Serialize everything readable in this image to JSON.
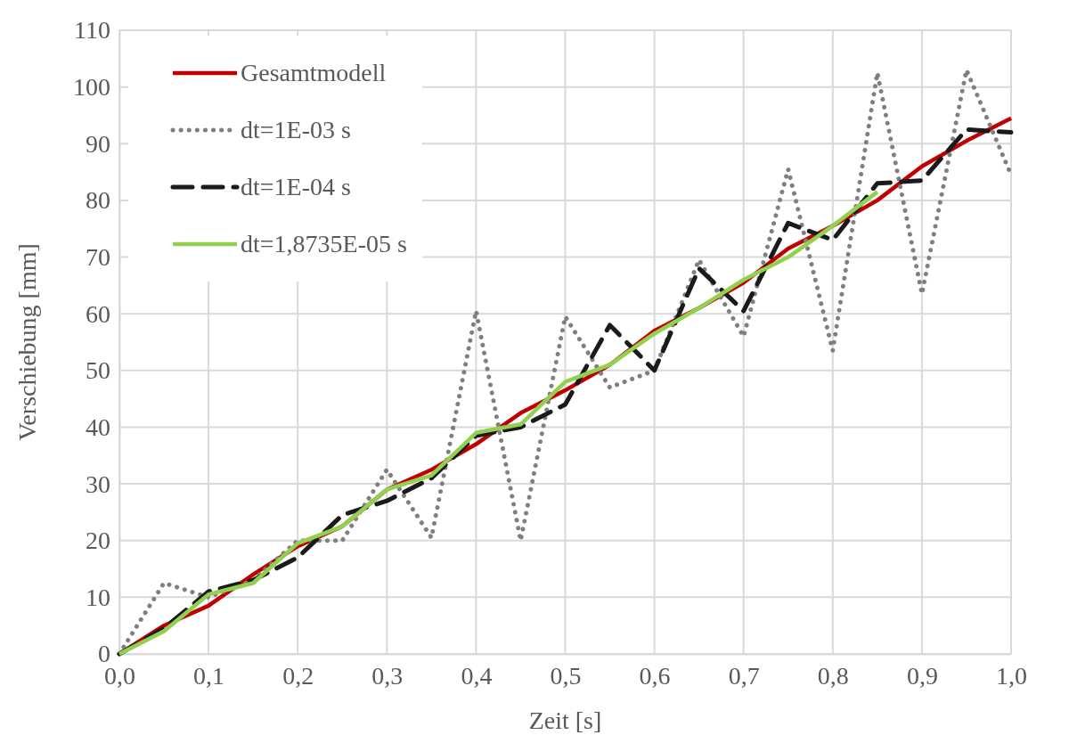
{
  "chart_data": {
    "type": "line",
    "xlabel": "Zeit [s]",
    "ylabel": "Verschiebung [mm]",
    "xlim": [
      0,
      1
    ],
    "ylim": [
      0,
      110
    ],
    "xticks": [
      {
        "value": 0,
        "label": "0,0"
      },
      {
        "value": 0.1,
        "label": "0,1"
      },
      {
        "value": 0.2,
        "label": "0,2"
      },
      {
        "value": 0.3,
        "label": "0,3"
      },
      {
        "value": 0.4,
        "label": "0,4"
      },
      {
        "value": 0.5,
        "label": "0,5"
      },
      {
        "value": 0.6,
        "label": "0,6"
      },
      {
        "value": 0.7,
        "label": "0,7"
      },
      {
        "value": 0.8,
        "label": "0,8"
      },
      {
        "value": 0.9,
        "label": "0,9"
      },
      {
        "value": 1,
        "label": "1,0"
      }
    ],
    "yticks": [
      0,
      10,
      20,
      30,
      40,
      50,
      60,
      70,
      80,
      90,
      100,
      110
    ],
    "grid": true,
    "legend": "top left",
    "marker": "none",
    "x": [
      0,
      0.05,
      0.1,
      0.15,
      0.2,
      0.25,
      0.3,
      0.35,
      0.4,
      0.45,
      0.5,
      0.55,
      0.6,
      0.65,
      0.7,
      0.75,
      0.8,
      0.85,
      0.9,
      0.95,
      1.0
    ],
    "series": [
      {
        "name": "Gesamtmodell",
        "color": "#c00000",
        "line_style": "solid",
        "values": [
          0,
          5,
          8.5,
          14,
          19,
          22.5,
          29,
          32.5,
          37,
          42.5,
          46.5,
          51,
          57,
          61,
          65.5,
          71.5,
          75.5,
          80,
          86,
          90.5,
          94.5
        ]
      },
      {
        "name": "dt=1E-03 s",
        "color": "#7f7f7f",
        "line_style": "dotted",
        "values": [
          0,
          12.5,
          10,
          13,
          20,
          20,
          32.5,
          20.5,
          60.5,
          20,
          59.5,
          47,
          50,
          69.5,
          56,
          85.5,
          53.5,
          102.5,
          63.5,
          103,
          84.5
        ]
      },
      {
        "name": "dt=1E-04 s",
        "color": "#1a1a1a",
        "line_style": "dashed",
        "values": [
          0,
          4.5,
          11,
          13,
          17,
          24.5,
          27,
          31,
          38.5,
          40,
          44,
          58,
          50,
          68,
          60.5,
          76,
          73,
          83,
          83.5,
          92.5,
          92
        ]
      },
      {
        "name": "dt=1,8735E-05 s",
        "color": "#92d050",
        "line_style": "solid",
        "values": [
          0,
          4,
          10.5,
          12.5,
          19.5,
          22.5,
          29,
          31.5,
          39,
          40.5,
          48,
          51,
          56.5,
          61,
          66,
          70,
          75.5,
          81.5,
          null,
          null,
          null
        ]
      }
    ]
  }
}
